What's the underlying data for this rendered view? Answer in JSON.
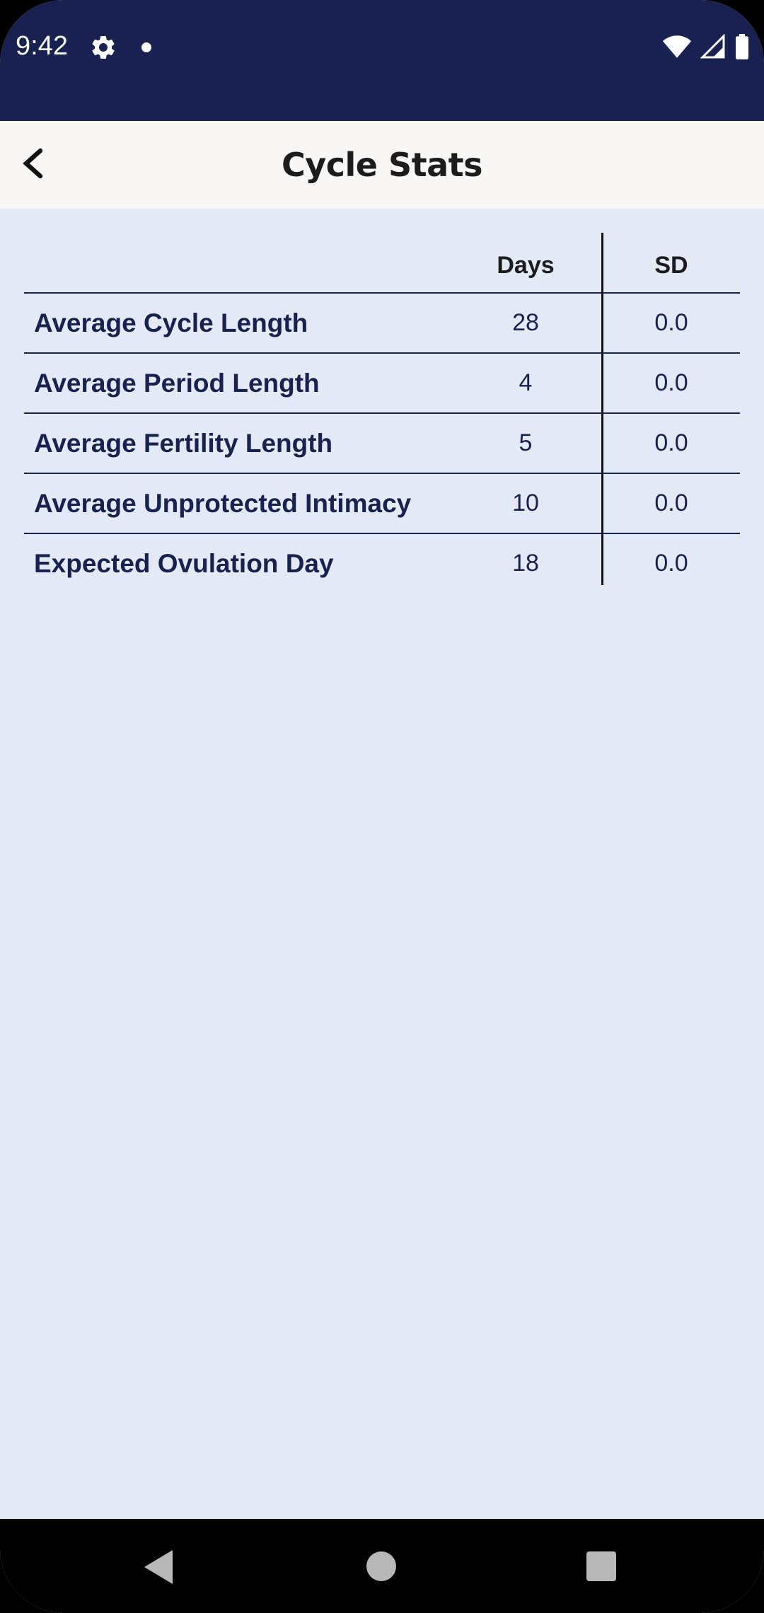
{
  "status_bar": {
    "time": "9:42",
    "icons": [
      "gear-icon",
      "notification-dot-icon",
      "wifi-icon",
      "signal-icon",
      "battery-icon"
    ]
  },
  "app_bar": {
    "title": "Cycle Stats",
    "back_icon": "chevron-left-icon"
  },
  "table": {
    "columns": [
      "Days",
      "SD"
    ],
    "rows": [
      {
        "label": "Average Cycle Length",
        "days": "28",
        "sd": "0.0"
      },
      {
        "label": "Average Period Length",
        "days": "4",
        "sd": "0.0"
      },
      {
        "label": "Average Fertility Length",
        "days": "5",
        "sd": "0.0"
      },
      {
        "label": "Average Unprotected Intimacy",
        "days": "10",
        "sd": "0.0"
      },
      {
        "label": "Expected Ovulation Day",
        "days": "18",
        "sd": "0.0"
      }
    ]
  },
  "nav_bar": {
    "icons": [
      "nav-back-icon",
      "nav-home-icon",
      "nav-recents-icon"
    ]
  },
  "colors": {
    "status_bar_bg": "#18214f",
    "app_bar_bg": "#f8f7f6",
    "content_bg": "#e4eaf5",
    "text_navy": "#18214f"
  }
}
